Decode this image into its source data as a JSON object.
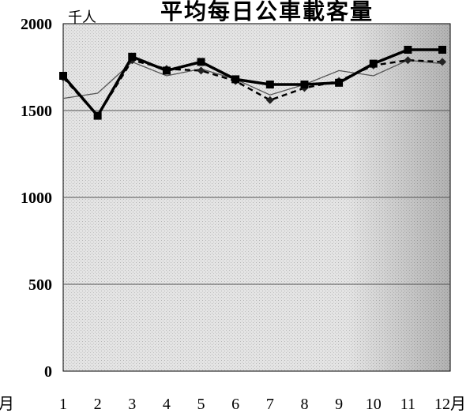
{
  "chart_data": {
    "type": "line",
    "title": "平均每日公車載客量",
    "unit_label": "千人",
    "x_unit": "月",
    "xlabel_left": "月",
    "categories": [
      "1",
      "2",
      "3",
      "4",
      "5",
      "6",
      "7",
      "8",
      "9",
      "10",
      "11",
      "12"
    ],
    "yticks": [
      "0",
      "500",
      "1000",
      "1500",
      "2000"
    ],
    "ylim": [
      0,
      2000
    ],
    "grid": true,
    "series": [
      {
        "style": "thick-solid-square-markers",
        "color": "#000000",
        "values": [
          1700,
          1470,
          1810,
          1730,
          1780,
          1680,
          1650,
          1650,
          1660,
          1770,
          1850,
          1850
        ]
      },
      {
        "style": "dashed-diamond-markers",
        "color": "#000000",
        "values": [
          1690,
          1470,
          1790,
          1740,
          1730,
          1670,
          1560,
          1630,
          1670,
          1760,
          1790,
          1780
        ]
      },
      {
        "style": "thin-solid",
        "color": "#555555",
        "values": [
          1570,
          1600,
          1780,
          1700,
          1740,
          1680,
          1590,
          1650,
          1730,
          1700,
          1790,
          1770
        ]
      }
    ]
  }
}
